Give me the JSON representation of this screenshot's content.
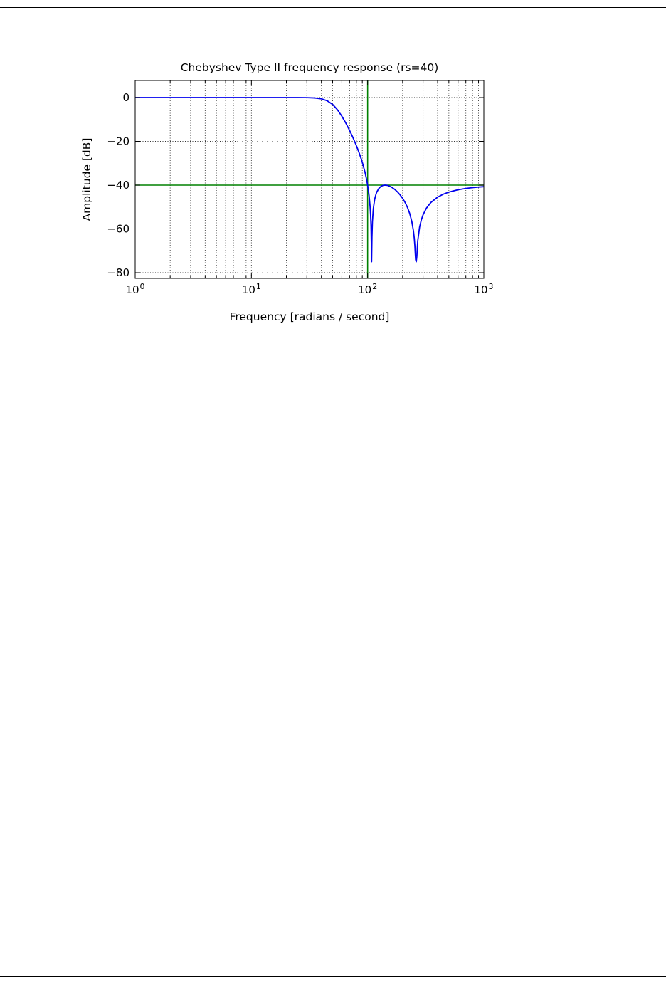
{
  "chart_data": {
    "type": "line",
    "title": "Chebyshev Type II frequency response (rs=40)",
    "xlabel": "Frequency [radians / second]",
    "ylabel": "Amplitude [dB]",
    "x_scale": "log",
    "xlim": [
      1,
      1000
    ],
    "ylim": [
      -82.6,
      7.8
    ],
    "grid": "both",
    "grid_style": "dotted-black",
    "x_ticks": [
      {
        "v": 1,
        "base": "10",
        "exp": "0"
      },
      {
        "v": 10,
        "base": "10",
        "exp": "1"
      },
      {
        "v": 100,
        "base": "10",
        "exp": "2"
      },
      {
        "v": 1000,
        "base": "10",
        "exp": "3"
      }
    ],
    "y_ticks": [
      {
        "v": 0,
        "label": "0"
      },
      {
        "v": -20,
        "label": "−20"
      },
      {
        "v": -40,
        "label": "−40"
      },
      {
        "v": -60,
        "label": "−60"
      },
      {
        "v": -80,
        "label": "−80"
      }
    ],
    "reference_lines": {
      "cutoff_frequency": {
        "x": 100,
        "color": "#008000"
      },
      "stopband_edge": {
        "y": -40,
        "color": "#008000"
      }
    },
    "series": [
      {
        "name": "frequency-response",
        "color": "#0000ee",
        "points": [
          [
            1,
            0
          ],
          [
            2,
            0
          ],
          [
            4,
            0
          ],
          [
            7,
            0
          ],
          [
            10,
            0
          ],
          [
            15,
            0
          ],
          [
            20,
            -0.01
          ],
          [
            25,
            -0.02
          ],
          [
            30,
            -0.05
          ],
          [
            35,
            -0.19
          ],
          [
            40,
            -0.58
          ],
          [
            45,
            -1.49
          ],
          [
            50,
            -3.14
          ],
          [
            55,
            -5.57
          ],
          [
            60,
            -8.51
          ],
          [
            65,
            -11.71
          ],
          [
            70,
            -15.04
          ],
          [
            75,
            -18.43
          ],
          [
            80,
            -21.93
          ],
          [
            85,
            -25.6
          ],
          [
            90,
            -29.59
          ],
          [
            95,
            -34.17
          ],
          [
            98,
            -37.44
          ],
          [
            100,
            -40
          ],
          [
            102,
            -43.08
          ],
          [
            103,
            -44.93
          ],
          [
            105,
            -49.75
          ],
          [
            106,
            -53.28
          ],
          [
            107,
            -58.74
          ],
          [
            107.8,
            -68
          ],
          [
            108.2,
            -75
          ],
          [
            108.7,
            -67.9
          ],
          [
            109,
            -63.6
          ],
          [
            110,
            -56.63
          ],
          [
            112,
            -50.65
          ],
          [
            115,
            -46.46
          ],
          [
            118,
            -44.16
          ],
          [
            120,
            -43.13
          ],
          [
            125,
            -41.48
          ],
          [
            130,
            -40.61
          ],
          [
            135,
            -40.17
          ],
          [
            141,
            -40
          ],
          [
            148,
            -40.13
          ],
          [
            150,
            -40.22
          ],
          [
            160,
            -40.87
          ],
          [
            170,
            -41.83
          ],
          [
            180,
            -43.01
          ],
          [
            190,
            -44.41
          ],
          [
            200,
            -46.02
          ],
          [
            210,
            -47.9
          ],
          [
            220,
            -50.13
          ],
          [
            230,
            -52.9
          ],
          [
            240,
            -56.61
          ],
          [
            248,
            -60.99
          ],
          [
            252,
            -64.24
          ],
          [
            255,
            -67.72
          ],
          [
            257,
            -71.11
          ],
          [
            259,
            -74
          ],
          [
            262,
            -75
          ],
          [
            265,
            -72.76
          ],
          [
            270,
            -65.49
          ],
          [
            280,
            -59.19
          ],
          [
            290,
            -55.82
          ],
          [
            300,
            -53.56
          ],
          [
            320,
            -50.6
          ],
          [
            350,
            -47.95
          ],
          [
            400,
            -45.49
          ],
          [
            450,
            -44.09
          ],
          [
            500,
            -43.19
          ],
          [
            600,
            -42.11
          ],
          [
            700,
            -41.51
          ],
          [
            800,
            -41.14
          ],
          [
            900,
            -40.89
          ],
          [
            1000,
            -40.72
          ]
        ]
      }
    ]
  }
}
